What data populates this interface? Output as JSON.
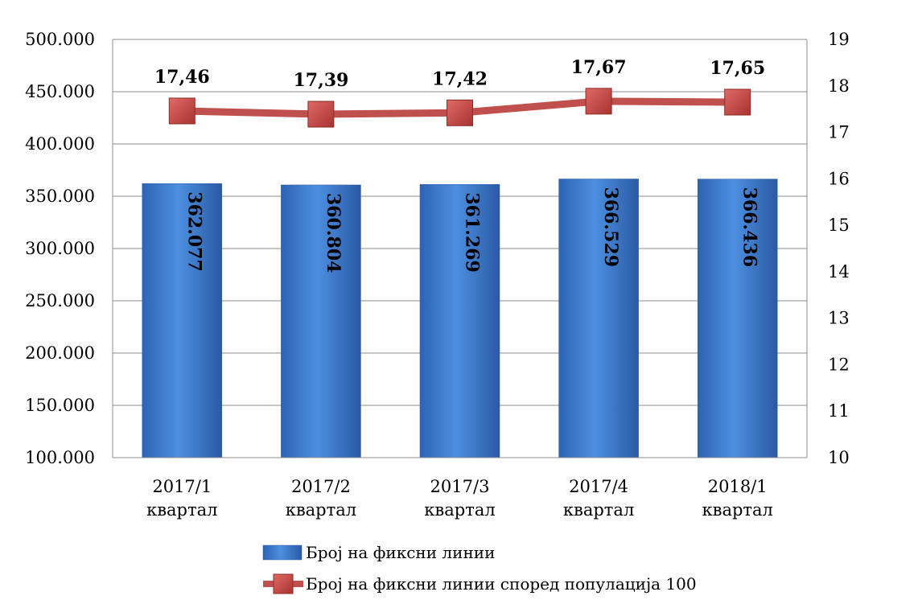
{
  "chart_data": {
    "type": "bar",
    "categories": [
      [
        "2017/1",
        "квартал"
      ],
      [
        "2017/2",
        "квартал"
      ],
      [
        "2017/3",
        "квартал"
      ],
      [
        "2017/4",
        "квартал"
      ],
      [
        "2018/1",
        "квартал"
      ]
    ],
    "series": [
      {
        "name": "Број на фиксни линии",
        "type": "bar",
        "axis": "left",
        "values": [
          362077,
          360804,
          361269,
          366529,
          366436
        ],
        "labels": [
          "362.077",
          "360.804",
          "361.269",
          "366.529",
          "366.436"
        ],
        "color": "#3a78c8"
      },
      {
        "name": "Број на фиксни линии според популација 100",
        "type": "line",
        "axis": "right",
        "values": [
          17.46,
          17.39,
          17.42,
          17.67,
          17.65
        ],
        "labels": [
          "17,46",
          "17,39",
          "17,42",
          "17,67",
          "17,65"
        ],
        "color": "#c0504d"
      }
    ],
    "y_left": {
      "range": [
        100000,
        500000
      ],
      "ticks": [
        "100.000",
        "150.000",
        "200.000",
        "250.000",
        "300.000",
        "350.000",
        "400.000",
        "450.000",
        "500.000"
      ]
    },
    "y_right": {
      "range": [
        10,
        19
      ],
      "ticks": [
        "10",
        "11",
        "12",
        "13",
        "14",
        "15",
        "16",
        "17",
        "18",
        "19"
      ]
    },
    "grid": true,
    "legend_position": "bottom"
  }
}
